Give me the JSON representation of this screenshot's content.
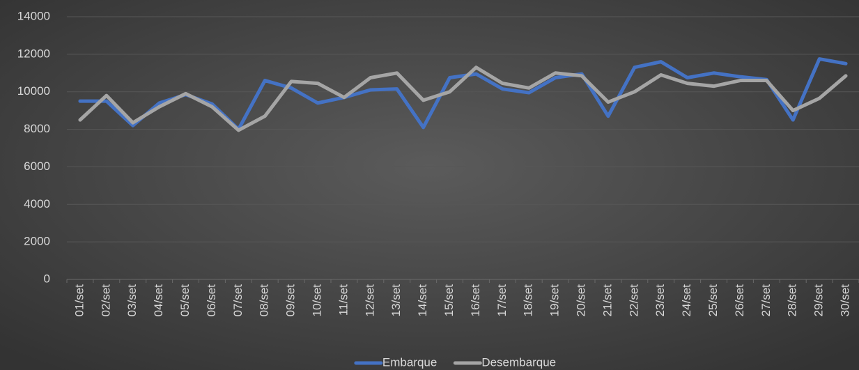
{
  "chart_data": {
    "type": "line",
    "categories": [
      "01/set",
      "02/set",
      "03/set",
      "04/set",
      "05/set",
      "06/set",
      "07/set",
      "08/set",
      "09/set",
      "10/set",
      "11/set",
      "12/set",
      "13/set",
      "14/set",
      "15/set",
      "16/set",
      "17/set",
      "18/set",
      "19/set",
      "20/set",
      "21/set",
      "22/set",
      "23/set",
      "24/set",
      "25/set",
      "26/set",
      "27/set",
      "28/set",
      "29/set",
      "30/set"
    ],
    "series": [
      {
        "name": "Embarque",
        "color": "#4472c4",
        "values": [
          9500,
          9500,
          8200,
          9400,
          9850,
          9350,
          8000,
          10600,
          10200,
          9400,
          9700,
          10100,
          10150,
          8100,
          10750,
          10950,
          10150,
          9950,
          10750,
          10950,
          8700,
          11300,
          11600,
          10750,
          11000,
          10800,
          10650,
          8500,
          11750,
          11500
        ]
      },
      {
        "name": "Desembarque",
        "color": "#a5a5a5",
        "values": [
          8500,
          9800,
          8350,
          9200,
          9900,
          9200,
          7950,
          8700,
          10550,
          10450,
          9700,
          10750,
          11000,
          9550,
          10000,
          11300,
          10450,
          10200,
          11000,
          10850,
          9450,
          10000,
          10900,
          10450,
          10300,
          10600,
          10600,
          9000,
          9650,
          10850
        ]
      }
    ],
    "ylim": [
      0,
      14000
    ],
    "yticks": [
      0,
      2000,
      4000,
      6000,
      8000,
      10000,
      12000,
      14000
    ],
    "grid": true,
    "legend": "bottom"
  }
}
